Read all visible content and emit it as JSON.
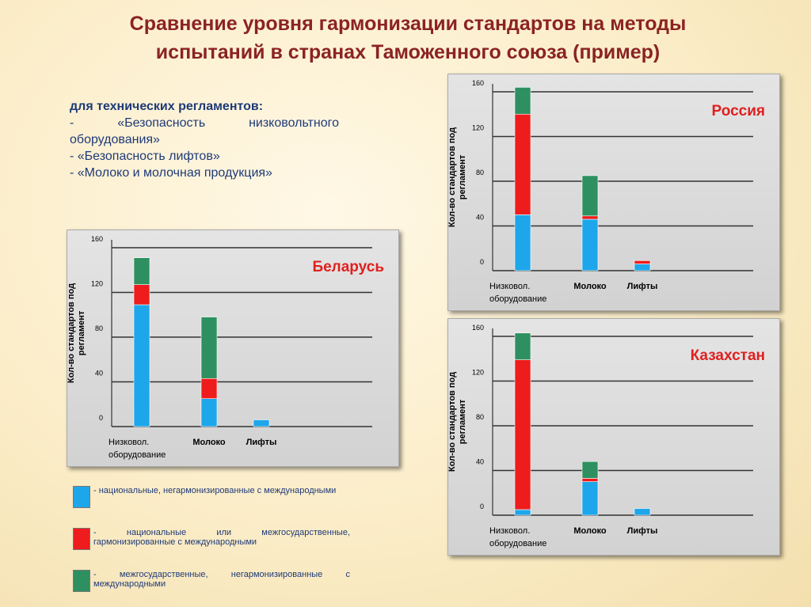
{
  "title": [
    "Сравнение уровня гармонизации стандартов на методы",
    "испытаний в странах  Таможенного союза (пример)"
  ],
  "intro": {
    "heading": "для технических регламентов:",
    "items": [
      "-  «Безопасность   низковольтного оборудования»",
      "- «Безопасность лифтов»",
      "- «Молоко и молочная продукция»"
    ]
  },
  "legend": [
    {
      "name": "- национальные,   негармонизированные   с международными",
      "color": "#1ea6ea"
    },
    {
      "name": "- национальные или межгосударственные, гармонизированные  с международными",
      "color": "#ee1c1c"
    },
    {
      "name": "- межгосударственные,  негармонизированные   с международными",
      "color": "#2e9060"
    }
  ],
  "chart_data": [
    {
      "type": "bar",
      "stacked": true,
      "title": "Беларусь",
      "ylabel": [
        "Кол-во стандартов  под",
        "регламент"
      ],
      "categories": [
        [
          "Низковол.",
          "оборудование"
        ],
        [
          "Молоко"
        ],
        [
          "Лифты"
        ]
      ],
      "series": [
        {
          "values": [
            109,
            25,
            6
          ]
        },
        {
          "values": [
            18,
            18,
            0
          ]
        },
        {
          "values": [
            24,
            55,
            0
          ]
        }
      ],
      "ylim": [
        0,
        160
      ],
      "yticks": [
        0,
        40,
        80,
        120,
        160
      ],
      "grid": true
    },
    {
      "type": "bar",
      "stacked": true,
      "title": "Россия",
      "ylabel": [
        "Кол-во стандартов  под",
        "регламент"
      ],
      "categories": [
        [
          "Низковол.",
          "оборудование"
        ],
        [
          "Молоко"
        ],
        [
          "Лифты"
        ]
      ],
      "series": [
        {
          "values": [
            50,
            46,
            6
          ]
        },
        {
          "values": [
            90,
            3,
            3
          ]
        },
        {
          "values": [
            24,
            36,
            0
          ]
        }
      ],
      "ylim": [
        0,
        160
      ],
      "yticks": [
        0,
        40,
        80,
        120,
        160
      ],
      "grid": true
    },
    {
      "type": "bar",
      "stacked": true,
      "title": "Казахстан",
      "ylabel": [
        "Кол-во стандартов  под",
        "регламент"
      ],
      "categories": [
        [
          "Низковол.",
          "оборудование"
        ],
        [
          "Молоко"
        ],
        [
          "Лифты"
        ]
      ],
      "series": [
        {
          "values": [
            5,
            30,
            6
          ]
        },
        {
          "values": [
            134,
            3,
            0
          ]
        },
        {
          "values": [
            24,
            15,
            0
          ]
        }
      ],
      "ylim": [
        0,
        160
      ],
      "yticks": [
        0,
        40,
        80,
        120,
        160
      ],
      "grid": true
    }
  ]
}
